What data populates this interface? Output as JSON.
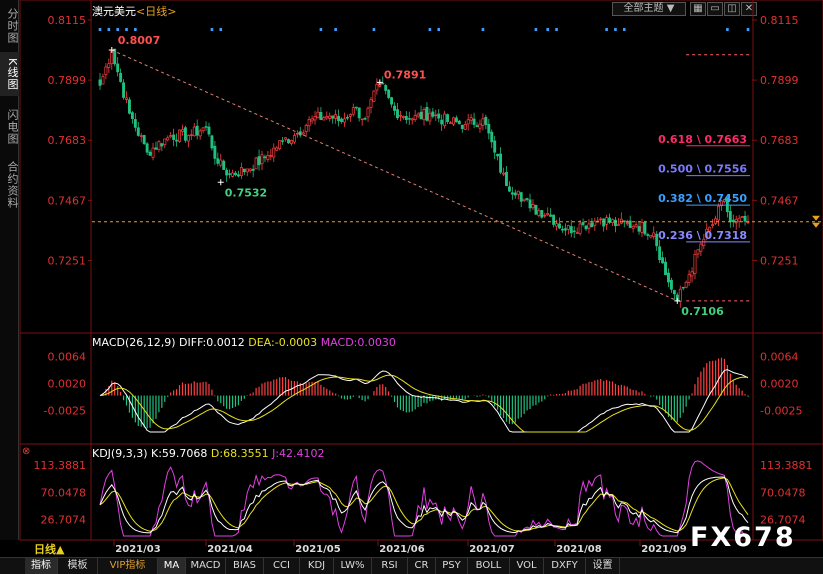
{
  "header": {
    "title": "澳元美元",
    "period": "<日线>",
    "theme_select": "全部主题",
    "theme_arrow": "▼"
  },
  "left_tabs": [
    "分时图",
    "K线图",
    "闪电图",
    "合约资料"
  ],
  "left_active": 1,
  "price_axis": {
    "min": 0.703,
    "max": 0.8115,
    "ticks": [
      "0.8115",
      "0.7899",
      "0.7683",
      "0.7467",
      "0.7251"
    ],
    "tick_values": [
      0.8115,
      0.7899,
      0.7683,
      0.7467,
      0.7251
    ]
  },
  "annotations": {
    "high1": "0.8007",
    "low1": "0.7532",
    "high2": "0.7891",
    "low2": "0.7106"
  },
  "fib_levels": [
    {
      "label": "0.618 \\ 0.7663",
      "value": 0.7663,
      "color": "#ff2a6a"
    },
    {
      "label": "0.500 \\ 0.7556",
      "value": 0.7556,
      "color": "#7a7aff"
    },
    {
      "label": "0.382 \\ 0.7450",
      "value": 0.745,
      "color": "#3aa0ff"
    },
    {
      "label": "0.236 \\ 0.7318",
      "value": 0.7318,
      "color": "#8a8aff"
    }
  ],
  "macd": {
    "title": "MACD(26,12,9)",
    "diff": "DIFF:0.0012",
    "dea": "DEA:-0.0003",
    "macd": "MACD:0.0030",
    "ticks": [
      "0.0064",
      "0.0020",
      "-0.0025"
    ],
    "tick_values": [
      0.0064,
      0.002,
      -0.0025
    ]
  },
  "kdj": {
    "title": "KDJ(9,3,3)",
    "k": "K:59.7068",
    "d": "D:68.3551",
    "j": "J:42.4102",
    "ticks": [
      "113.3881",
      "70.0478",
      "26.7074"
    ],
    "tick_values": [
      113.3881,
      70.0478,
      26.7074
    ]
  },
  "time_axis": {
    "period_btn": "日线",
    "period_arrow": "▲",
    "labels": [
      "2021/03",
      "2021/04",
      "2021/05",
      "2021/06",
      "2021/07",
      "2021/08",
      "2021/09"
    ]
  },
  "bottom_tabs": [
    "指标",
    "模板",
    "VIP指标",
    "MA",
    "MACD",
    "BIAS",
    "CCI",
    "KDJ",
    "LW%",
    "RSI",
    "CR",
    "PSY",
    "BOLL",
    "VOL",
    "DXFY",
    "设置"
  ],
  "bottom_active": [
    0,
    3
  ],
  "watermark": "FX678",
  "chart_data": {
    "type": "candlestick",
    "x_start": "2021/02/22",
    "x_end": "2021/09/03",
    "ylim": [
      0.703,
      0.8115
    ],
    "path_points": [
      [
        0,
        0.788
      ],
      [
        4,
        0.8007
      ],
      [
        10,
        0.778
      ],
      [
        16,
        0.764
      ],
      [
        24,
        0.77
      ],
      [
        30,
        0.77
      ],
      [
        36,
        0.773
      ],
      [
        40,
        0.76
      ],
      [
        44,
        0.756
      ],
      [
        50,
        0.758
      ],
      [
        56,
        0.762
      ],
      [
        62,
        0.768
      ],
      [
        66,
        0.77
      ],
      [
        72,
        0.776
      ],
      [
        78,
        0.777
      ],
      [
        82,
        0.775
      ],
      [
        86,
        0.78
      ],
      [
        90,
        0.776
      ],
      [
        95,
        0.7891
      ],
      [
        100,
        0.779
      ],
      [
        106,
        0.776
      ],
      [
        112,
        0.778
      ],
      [
        118,
        0.775
      ],
      [
        124,
        0.774
      ],
      [
        130,
        0.776
      ],
      [
        134,
        0.764
      ],
      [
        138,
        0.752
      ],
      [
        142,
        0.75
      ],
      [
        146,
        0.744
      ],
      [
        152,
        0.742
      ],
      [
        158,
        0.736
      ],
      [
        164,
        0.738
      ],
      [
        170,
        0.74
      ],
      [
        176,
        0.738
      ],
      [
        182,
        0.738
      ],
      [
        188,
        0.735
      ],
      [
        192,
        0.72
      ],
      [
        196,
        0.7106
      ],
      [
        200,
        0.72
      ],
      [
        204,
        0.731
      ],
      [
        208,
        0.738
      ],
      [
        212,
        0.747
      ],
      [
        214,
        0.739
      ],
      [
        220,
        0.739
      ]
    ],
    "closes_summary": {
      "high_1": 0.8007,
      "low_1": 0.7532,
      "high_2": 0.7891,
      "low_2": 0.7106,
      "last": 0.739
    },
    "macd_ylim": [
      -0.006,
      0.0075
    ],
    "kdj_ylim": [
      0,
      125
    ]
  }
}
